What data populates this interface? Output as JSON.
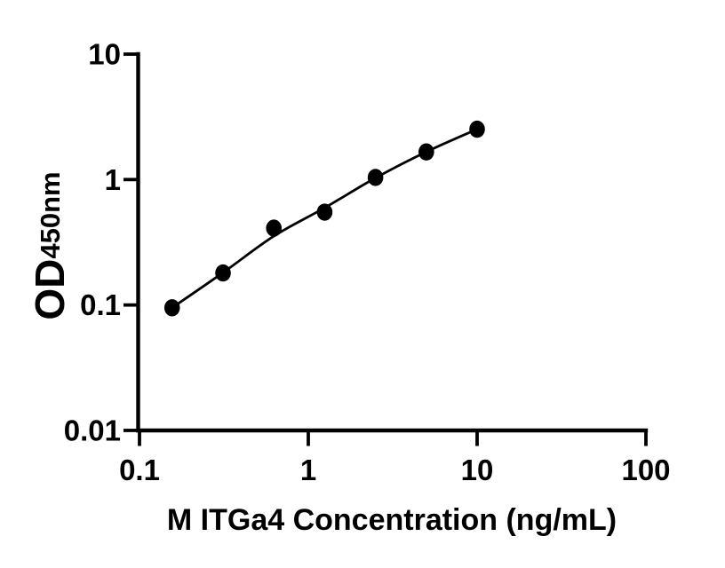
{
  "figure": {
    "background_color": "#ffffff",
    "ink_color": "#000000",
    "x_axis": {
      "label": "M ITGa4 Concentration (ng/mL)",
      "scale": "log10",
      "tick_labels": [
        "0.1",
        "1",
        "10",
        "100"
      ],
      "tick_values": [
        0.1,
        1,
        10,
        100
      ],
      "range": [
        0.1,
        100
      ]
    },
    "y_axis": {
      "label_main": "OD",
      "label_sub": "450nm",
      "scale": "log10",
      "tick_labels": [
        "10",
        "1",
        "0.1",
        "0.01"
      ],
      "tick_values": [
        10,
        1,
        0.1,
        0.01
      ],
      "range": [
        0.01,
        10
      ]
    }
  },
  "chart_data": {
    "type": "scatter",
    "title": "",
    "xlabel": "M ITGa4 Concentration (ng/mL)",
    "ylabel": "OD450nm",
    "x_scale": "log",
    "y_scale": "log",
    "xlim": [
      0.1,
      100
    ],
    "ylim": [
      0.01,
      10
    ],
    "grid": false,
    "legend_position": "none",
    "x": [
      0.156,
      0.3125,
      0.625,
      1.25,
      2.5,
      5,
      10
    ],
    "series": [
      {
        "name": "standard curve data points",
        "style": "filled-black-circle-markers",
        "values": [
          0.095,
          0.18,
          0.41,
          0.55,
          1.04,
          1.66,
          2.52
        ]
      },
      {
        "name": "fitted standard curve line",
        "style": "smooth-black-line",
        "values": [
          0.095,
          0.181,
          0.354,
          0.595,
          1.03,
          1.664,
          2.52
        ]
      }
    ]
  }
}
